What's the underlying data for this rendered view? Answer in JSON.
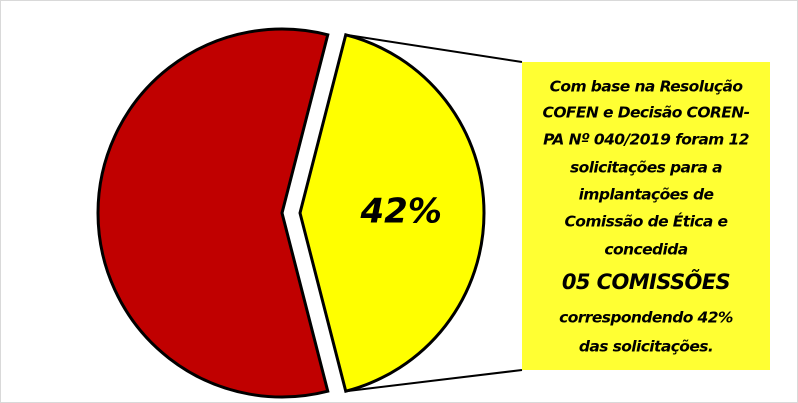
{
  "chart_data": {
    "type": "pie",
    "values": [
      58,
      42
    ],
    "value_labels": [
      null,
      "42%"
    ],
    "colors": [
      "#c00000",
      "#ffff00"
    ],
    "annotation": {
      "lines": [
        "Com base na Resolução",
        "COFEN e Decisão COREN-",
        "PA Nº 040/2019 foram 12",
        "solicitações para a",
        "implantações de",
        "Comissão de Ética e",
        "concedida",
        "05 COMISSÕES",
        "correspondendo 42%",
        "das solicitações."
      ],
      "color": "#ffff33"
    }
  }
}
